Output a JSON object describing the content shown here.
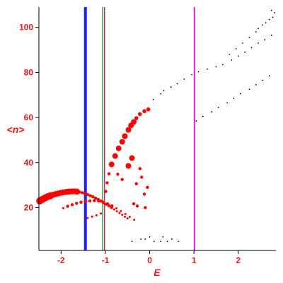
{
  "chart_data": {
    "type": "scatter",
    "xlabel": "E",
    "ylabel": "<n>",
    "xlim": [
      -2.5,
      2.85
    ],
    "ylim": [
      1,
      109
    ],
    "x_ticks": [
      -2,
      -1,
      0,
      1,
      2
    ],
    "y_ticks": [
      20,
      40,
      60,
      80,
      100
    ],
    "x_tick_labels": [
      "-2",
      "-1",
      "0",
      "1",
      "2"
    ],
    "y_tick_labels": [
      "20",
      "40",
      "60",
      "80",
      "100"
    ],
    "vlines": [
      {
        "x": -1.45,
        "color": "#1f1fff",
        "width": 4
      },
      {
        "x": -1.06,
        "color": "#2e9e2e",
        "width": 1.5
      },
      {
        "x": -1.02,
        "color": "#cc2299",
        "width": 1.5
      },
      {
        "x": 1.01,
        "color": "#dd22dd",
        "width": 2
      }
    ],
    "series": [
      {
        "marker_color": "#ff0000",
        "points": [
          [
            -2.48,
            23.0
          ],
          [
            -2.42,
            23.7
          ],
          [
            -2.36,
            24.3
          ],
          [
            -2.3,
            24.9
          ],
          [
            -2.24,
            25.3
          ],
          [
            -2.18,
            25.7
          ],
          [
            -2.12,
            26.0
          ],
          [
            -2.06,
            26.3
          ],
          [
            -2.0,
            26.6
          ],
          [
            -1.94,
            26.8
          ],
          [
            -1.88,
            27.0
          ],
          [
            -1.82,
            27.1
          ],
          [
            -1.76,
            27.2
          ],
          [
            -1.7,
            27.2
          ],
          [
            -1.64,
            27.1
          ],
          [
            -1.58,
            26.9
          ],
          [
            -1.52,
            26.6
          ],
          [
            -1.46,
            26.2
          ],
          [
            -1.4,
            25.8
          ],
          [
            -1.34,
            25.3
          ],
          [
            -1.28,
            24.8
          ],
          [
            -1.22,
            24.2
          ],
          [
            -1.16,
            23.6
          ],
          [
            -1.1,
            22.9
          ],
          [
            -1.04,
            22.2
          ],
          [
            -0.98,
            21.5
          ],
          [
            -0.92,
            20.8
          ],
          [
            -0.86,
            20.0
          ],
          [
            -0.8,
            19.2
          ],
          [
            -0.74,
            18.4
          ],
          [
            -0.68,
            17.6
          ],
          [
            -0.62,
            16.8
          ],
          [
            -0.56,
            16.0
          ],
          [
            -0.5,
            15.2
          ],
          [
            -1.95,
            19.8
          ],
          [
            -1.85,
            20.6
          ],
          [
            -1.75,
            21.3
          ],
          [
            -1.65,
            21.9
          ],
          [
            -1.55,
            22.4
          ],
          [
            -1.45,
            22.8
          ],
          [
            -1.35,
            23.0
          ],
          [
            -1.25,
            23.1
          ],
          [
            -1.15,
            22.9
          ],
          [
            -1.05,
            22.4
          ],
          [
            -0.95,
            21.7
          ],
          [
            -0.85,
            20.8
          ],
          [
            -0.75,
            19.7
          ],
          [
            -0.65,
            18.5
          ],
          [
            -0.55,
            17.2
          ],
          [
            -0.45,
            15.9
          ],
          [
            -0.35,
            14.6
          ],
          [
            -1.4,
            15.4
          ],
          [
            -1.3,
            16.0
          ],
          [
            -1.2,
            16.6
          ],
          [
            -1.1,
            17.4
          ],
          [
            -0.99,
            27.2
          ],
          [
            -0.96,
            31.0
          ],
          [
            -0.92,
            35.0
          ],
          [
            -0.86,
            39.2
          ],
          [
            -0.78,
            42.9
          ],
          [
            -0.7,
            46.3
          ],
          [
            -0.62,
            49.2
          ],
          [
            -0.56,
            51.7
          ],
          [
            -0.48,
            54.5
          ],
          [
            -0.42,
            56.5
          ],
          [
            -0.36,
            58.0
          ],
          [
            -0.3,
            59.7
          ],
          [
            -0.22,
            61.5
          ],
          [
            -0.12,
            62.8
          ],
          [
            -0.03,
            63.6
          ],
          [
            -0.48,
            38.5
          ],
          [
            -0.72,
            34.8
          ],
          [
            -0.4,
            42.0
          ],
          [
            -0.18,
            33.5
          ],
          [
            -0.05,
            29.0
          ],
          [
            -0.12,
            26.0
          ],
          [
            -0.36,
            21.7
          ],
          [
            -0.28,
            20.7
          ],
          [
            -0.1,
            20.0
          ],
          [
            -0.3,
            30.6
          ],
          [
            -0.22,
            37.3
          ],
          [
            -0.62,
            32.5
          ]
        ]
      },
      {
        "marker_color": "#000000",
        "points": [
          [
            -0.2,
            6
          ],
          [
            -0.1,
            6
          ],
          [
            0.25,
            5
          ],
          [
            0.4,
            5
          ],
          [
            0.65,
            5
          ],
          [
            -0.4,
            5
          ],
          [
            0.0,
            7
          ],
          [
            0.1,
            5
          ],
          [
            0.3,
            7
          ],
          [
            0.5,
            6
          ],
          [
            0.08,
            68
          ],
          [
            0.25,
            70.5
          ],
          [
            0.32,
            72
          ],
          [
            0.48,
            73.5
          ],
          [
            0.62,
            75
          ],
          [
            0.78,
            77
          ],
          [
            0.95,
            79
          ],
          [
            1.1,
            80.3
          ],
          [
            1.3,
            81.5
          ],
          [
            1.5,
            82.5
          ],
          [
            1.65,
            83.5
          ],
          [
            1.85,
            85.5
          ],
          [
            2.0,
            87.3
          ],
          [
            2.15,
            89
          ],
          [
            2.3,
            91
          ],
          [
            2.45,
            93
          ],
          [
            2.6,
            94.5
          ],
          [
            2.75,
            96.5
          ],
          [
            1.05,
            58.5
          ],
          [
            1.2,
            60.5
          ],
          [
            1.4,
            62.5
          ],
          [
            1.55,
            64.5
          ],
          [
            1.75,
            66.5
          ],
          [
            1.9,
            68.5
          ],
          [
            2.05,
            70.5
          ],
          [
            2.25,
            72.5
          ],
          [
            2.4,
            74.5
          ],
          [
            2.55,
            76.5
          ],
          [
            2.7,
            78.5
          ],
          [
            1.8,
            88.0
          ],
          [
            1.95,
            90.5
          ],
          [
            2.1,
            93.0
          ],
          [
            2.25,
            95.5
          ],
          [
            2.4,
            98.0
          ],
          [
            2.55,
            101.0
          ],
          [
            2.7,
            103.5
          ],
          [
            2.82,
            106.5
          ],
          [
            2.45,
            99.5
          ],
          [
            2.62,
            102
          ],
          [
            2.78,
            104.5
          ],
          [
            2.75,
            107.5
          ]
        ]
      }
    ]
  }
}
